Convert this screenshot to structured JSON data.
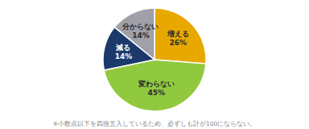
{
  "chart_data": {
    "type": "pie",
    "categories": [
      "増える",
      "変わらない",
      "減る",
      "分からない"
    ],
    "values": [
      26,
      45,
      14,
      14
    ],
    "value_labels": [
      "26%",
      "45%",
      "14%",
      "14%"
    ],
    "colors": [
      "#E8A800",
      "#90C93E",
      "#1B3A6B",
      "#A0A0A8"
    ],
    "data_labels": true,
    "annotations": [
      "※小数点以下を四捨五入しているため、必ずしも計が100にならない。"
    ]
  }
}
